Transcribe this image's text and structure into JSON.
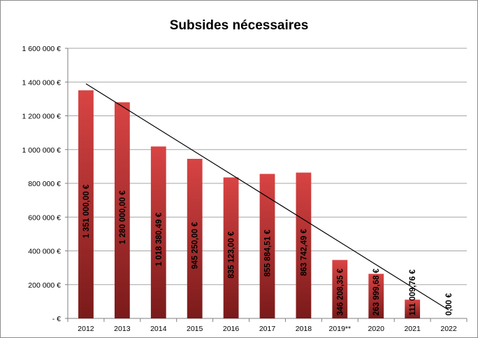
{
  "chart_data": {
    "type": "bar",
    "title": "Subsides nécessaires",
    "xlabel": "",
    "ylabel": "",
    "categories": [
      "2012",
      "2013",
      "2014",
      "2015",
      "2016",
      "2017",
      "2018",
      "2019**",
      "2020",
      "2021",
      "2022"
    ],
    "values": [
      1351000.0,
      1280000.0,
      1018380.49,
      945250.0,
      835123.0,
      855884.51,
      863742.49,
      346208.35,
      263999.68,
      111009.76,
      0.0
    ],
    "data_labels": [
      "1 351 000,00 €",
      "1 280 000,00 €",
      "1 018 380,49 €",
      "945 250,00 €",
      "835 123,00 €",
      "855 884,51 €",
      "863 742,49 €",
      "346 208,35 €",
      "263 999,68 €",
      "111 009,76 €",
      "0,00 €"
    ],
    "ylim": [
      0,
      1600000
    ],
    "yticks": [
      0,
      200000,
      400000,
      600000,
      800000,
      1000000,
      1200000,
      1400000,
      1600000
    ],
    "ytick_labels": [
      "-  €",
      "200 000  €",
      "400 000  €",
      "600 000  €",
      "800 000  €",
      "1 000 000  €",
      "1 200 000  €",
      "1 400 000  €",
      "1 600 000  €"
    ],
    "trendline": {
      "type": "linear",
      "start": [
        0,
        1390000
      ],
      "end": [
        10,
        50000
      ]
    },
    "grid": true,
    "legend": "none",
    "colors": {
      "bar_top": "#d94444",
      "bar_bottom": "#7a1a1a",
      "grid": "#a6a6a6",
      "trendline": "#000000"
    }
  }
}
